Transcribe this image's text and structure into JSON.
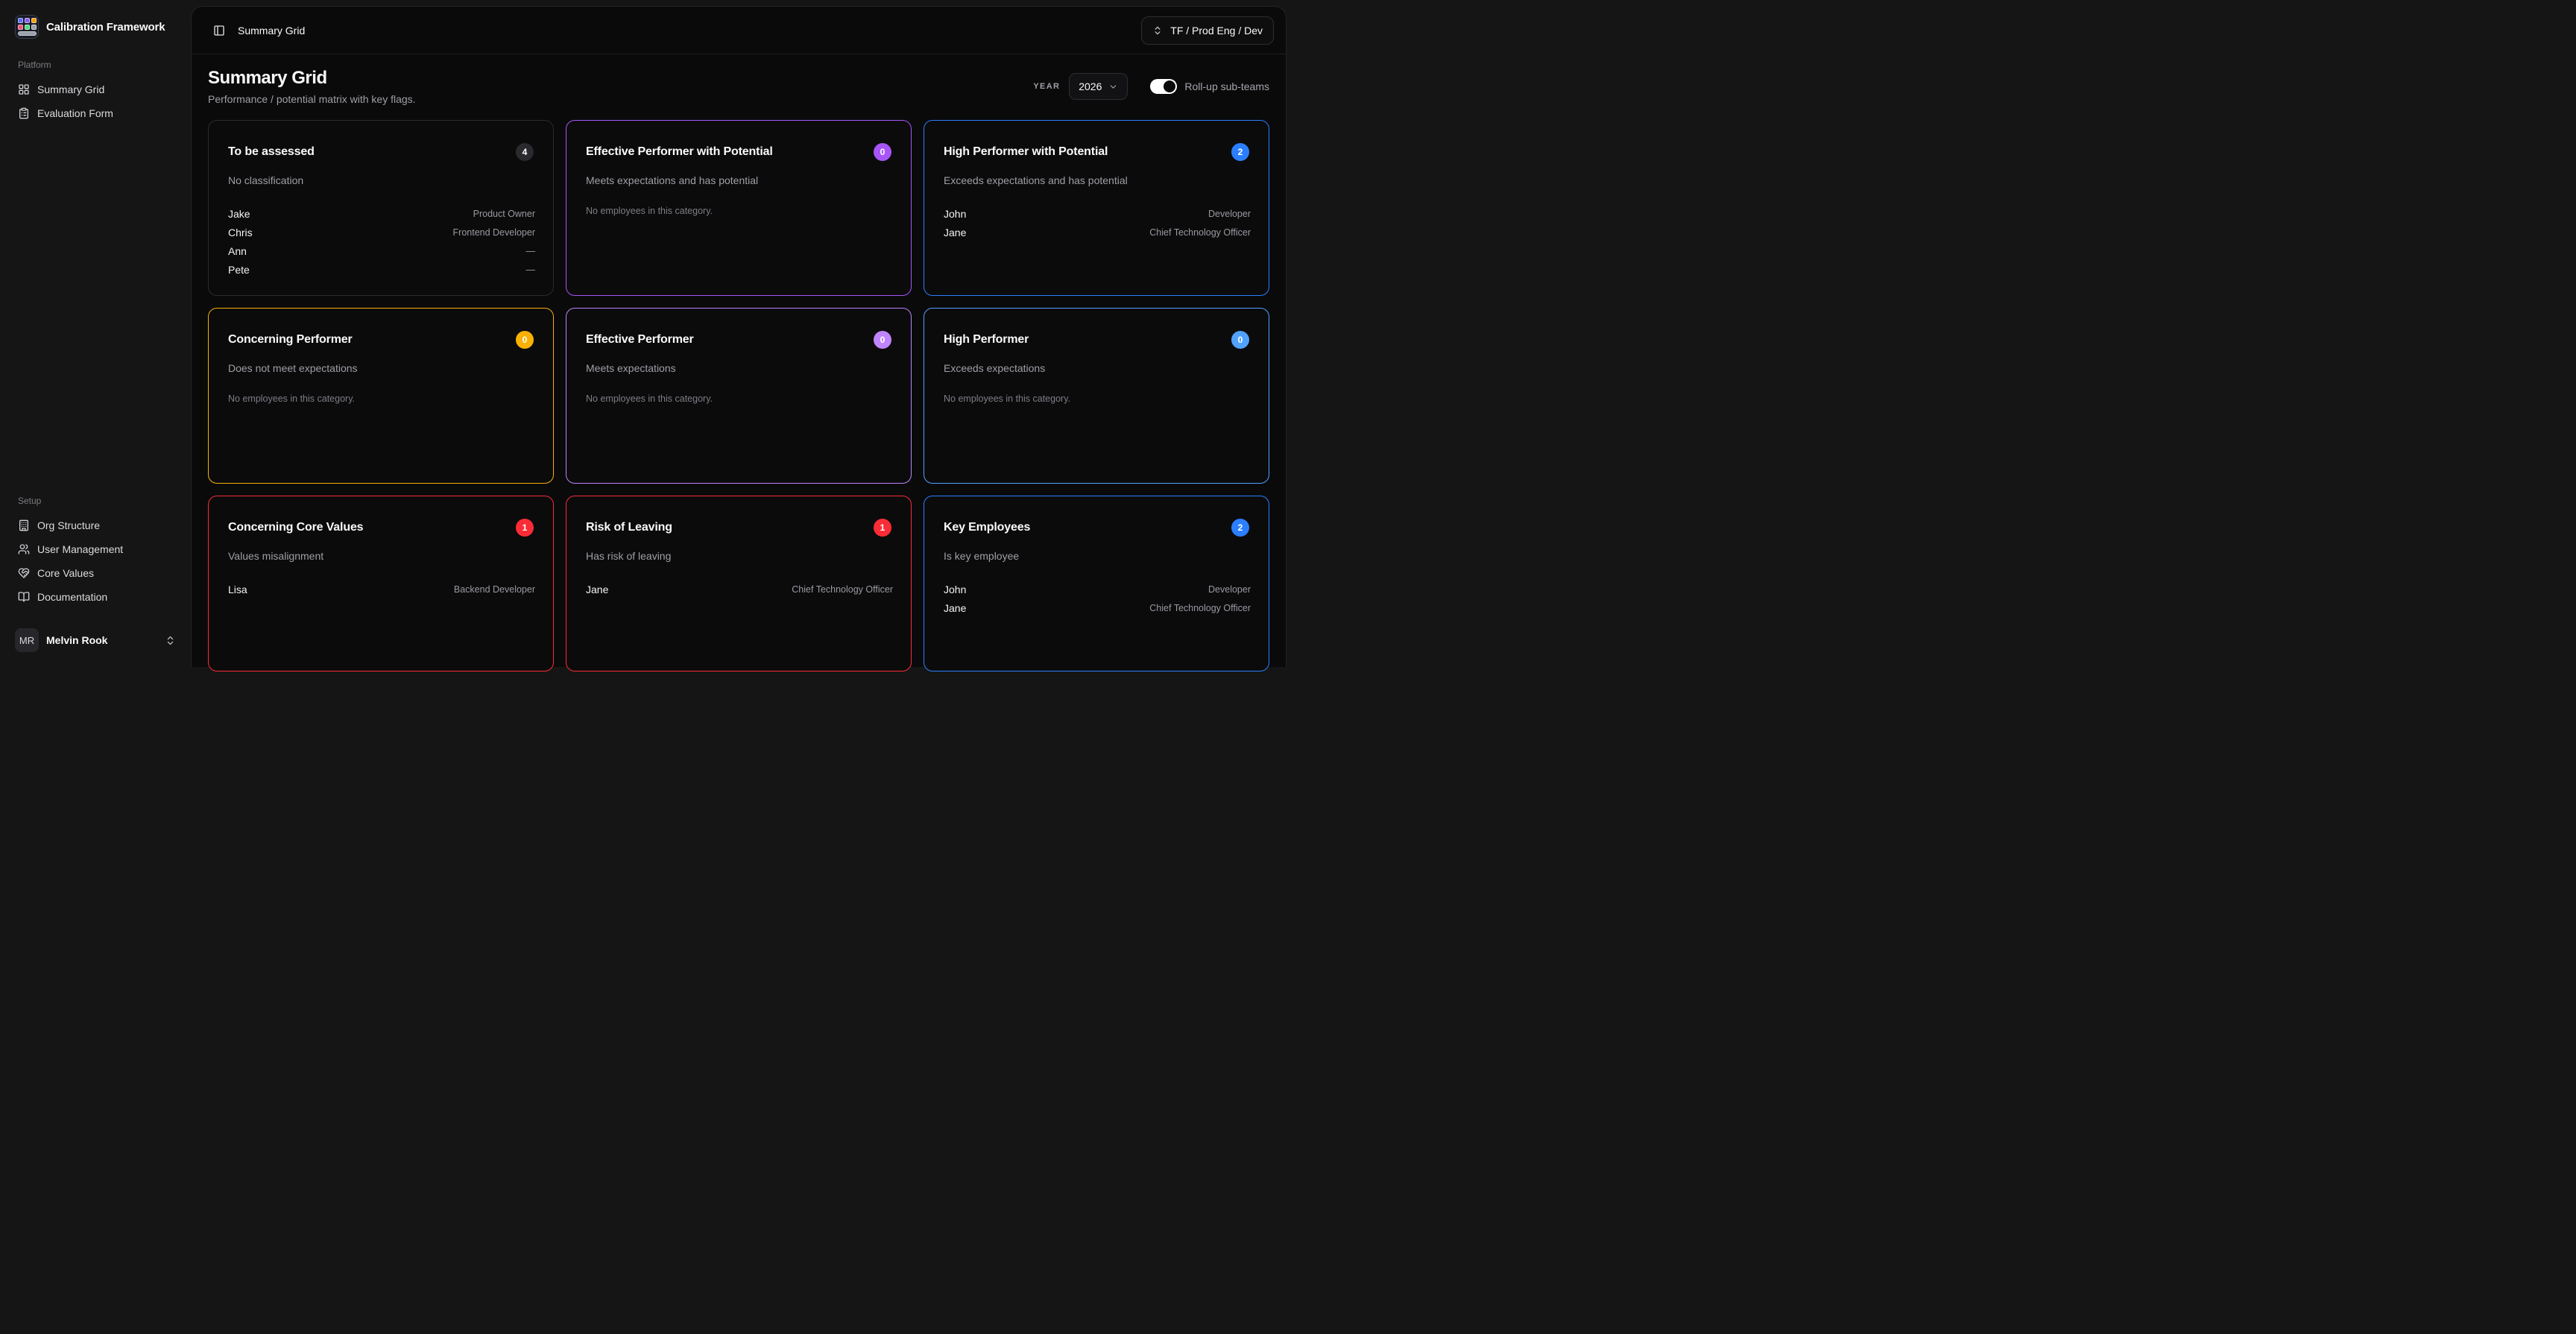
{
  "app": {
    "name": "Calibration Framework"
  },
  "sidebar": {
    "sections": [
      {
        "label": "Platform",
        "items": [
          {
            "label": "Summary Grid",
            "icon": "grid-icon"
          },
          {
            "label": "Evaluation Form",
            "icon": "clipboard-list-icon"
          }
        ]
      },
      {
        "label": "Setup",
        "items": [
          {
            "label": "Org Structure",
            "icon": "building-icon"
          },
          {
            "label": "User Management",
            "icon": "users-icon"
          },
          {
            "label": "Core Values",
            "icon": "heart-handshake-icon"
          },
          {
            "label": "Documentation",
            "icon": "book-open-icon"
          }
        ]
      }
    ],
    "user": {
      "initials": "MR",
      "name": "Melvin Rook"
    }
  },
  "header": {
    "breadcrumb": "Summary Grid",
    "team_selector": "TF / Prod Eng / Dev"
  },
  "page": {
    "title": "Summary Grid",
    "subtitle": "Performance / potential matrix with key flags.",
    "year_label": "YEAR",
    "year": "2026",
    "rollup_label": "Roll-up sub-teams",
    "rollup_on": true
  },
  "empty_text": "No employees in this category.",
  "colors": {
    "neutral_border": "#2c2c30",
    "neutral_badge": "#2a2a2e",
    "purple_deep": "#a855f7",
    "purple_light": "#c084fc",
    "blue_deep": "#2b7fff",
    "blue_light": "#51a2ff",
    "amber": "#f9b104",
    "red": "#fb2c36"
  },
  "cards": [
    {
      "title": "To be assessed",
      "count": "4",
      "description": "No classification",
      "accent": "#2c2c30",
      "badge_bg": "#2a2a2e",
      "employees": [
        {
          "name": "Jake",
          "role": "Product Owner"
        },
        {
          "name": "Chris",
          "role": "Frontend Developer"
        },
        {
          "name": "Ann",
          "role": "—"
        },
        {
          "name": "Pete",
          "role": "—"
        }
      ]
    },
    {
      "title": "Effective Performer with Potential",
      "count": "0",
      "description": "Meets expectations and has potential",
      "accent": "#a855f7",
      "badge_bg": "#a855f7",
      "employees": []
    },
    {
      "title": "High Performer with Potential",
      "count": "2",
      "description": "Exceeds expectations and has potential",
      "accent": "#2b7fff",
      "badge_bg": "#2b7fff",
      "employees": [
        {
          "name": "John",
          "role": "Developer"
        },
        {
          "name": "Jane",
          "role": "Chief Technology Officer"
        }
      ]
    },
    {
      "title": "Concerning Performer",
      "count": "0",
      "description": "Does not meet expectations",
      "accent": "#f9b104",
      "badge_bg": "#f9b104",
      "employees": []
    },
    {
      "title": "Effective Performer",
      "count": "0",
      "description": "Meets expectations",
      "accent": "#c084fc",
      "badge_bg": "#c084fc",
      "employees": []
    },
    {
      "title": "High Performer",
      "count": "0",
      "description": "Exceeds expectations",
      "accent": "#51a2ff",
      "badge_bg": "#51a2ff",
      "employees": []
    },
    {
      "title": "Concerning Core Values",
      "count": "1",
      "description": "Values misalignment",
      "accent": "#fb2c36",
      "badge_bg": "#fb2c36",
      "employees": [
        {
          "name": "Lisa",
          "role": "Backend Developer"
        }
      ]
    },
    {
      "title": "Risk of Leaving",
      "count": "1",
      "description": "Has risk of leaving",
      "accent": "#fb2c36",
      "badge_bg": "#fb2c36",
      "employees": [
        {
          "name": "Jane",
          "role": "Chief Technology Officer"
        }
      ]
    },
    {
      "title": "Key Employees",
      "count": "2",
      "description": "Is key employee",
      "accent": "#2b7fff",
      "badge_bg": "#2b7fff",
      "employees": [
        {
          "name": "John",
          "role": "Developer"
        },
        {
          "name": "Jane",
          "role": "Chief Technology Officer"
        }
      ]
    }
  ]
}
